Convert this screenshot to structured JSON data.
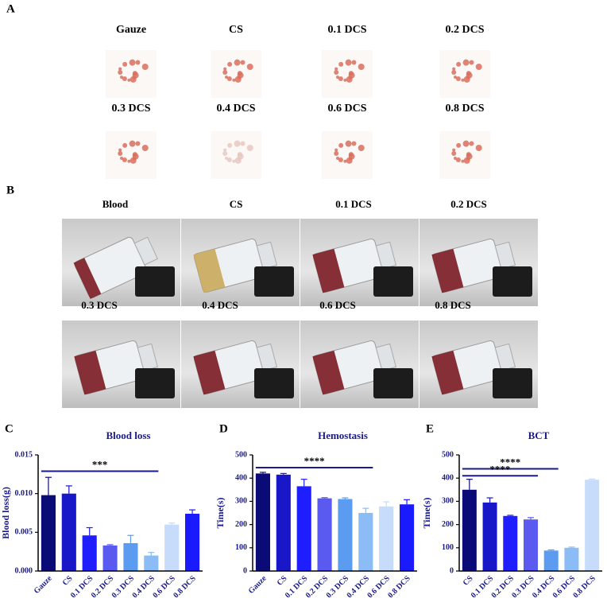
{
  "panel_a": {
    "label": "A",
    "captions": [
      "Gauze",
      "CS",
      "0.1 DCS",
      "0.2 DCS",
      "0.3 DCS",
      "0.4 DCS",
      "0.6 DCS",
      "0.8 DCS"
    ]
  },
  "panel_b": {
    "label": "B",
    "captions": [
      "Blood",
      "CS",
      "0.1 DCS",
      "0.2 DCS",
      "0.3 DCS",
      "0.4 DCS",
      "0.6 DCS",
      "0.8 DCS"
    ]
  },
  "chart_data": [
    {
      "type": "bar",
      "panel": "C",
      "title": "Blood loss",
      "ylabel": "Blood loss(g)",
      "categories": [
        "Gauze",
        "CS",
        "0.1 DCS",
        "0.2 DCS",
        "0.3 DCS",
        "0.4 DCS",
        "0.6 DCS",
        "0.8 DCS"
      ],
      "values": [
        0.0098,
        0.01,
        0.0046,
        0.0033,
        0.0036,
        0.002,
        0.006,
        0.0074
      ],
      "errors": [
        0.0023,
        0.001,
        0.001,
        0.0001,
        0.001,
        0.0004,
        0.0002,
        0.0005
      ],
      "colors": [
        "#0b0b78",
        "#1818c8",
        "#1e1eff",
        "#5a5af0",
        "#5c9cf0",
        "#8cbcf5",
        "#c6dcfa",
        "#1a1aff"
      ],
      "ylim": [
        0,
        0.015
      ],
      "yticks": [
        {
          "value": 0,
          "label": "0.000"
        },
        {
          "value": 0.005,
          "label": "0.005"
        },
        {
          "value": 0.01,
          "label": "0.010"
        },
        {
          "value": 0.015,
          "label": "0.015"
        }
      ],
      "significance": [
        {
          "from": "Gauze",
          "to": "0.4 DCS",
          "y": 0.0129,
          "label": "***"
        }
      ]
    },
    {
      "type": "bar",
      "panel": "D",
      "title": "Hemostasis",
      "ylabel": "Time(s)",
      "categories": [
        "Gauze",
        "CS",
        "0.1 DCS",
        "0.2 DCS",
        "0.3 DCS",
        "0.4 DCS",
        "0.6 DCS",
        "0.8 DCS"
      ],
      "values": [
        420,
        415,
        365,
        313,
        310,
        250,
        278,
        287
      ],
      "errors": [
        5,
        5,
        30,
        3,
        5,
        20,
        20,
        20
      ],
      "colors": [
        "#0b0b78",
        "#1818c8",
        "#1e1eff",
        "#5a5af0",
        "#5c9cf0",
        "#8cbcf5",
        "#c6dcfa",
        "#1a1aff"
      ],
      "ylim": [
        0,
        500
      ],
      "yticks": [
        0,
        100,
        200,
        300,
        400,
        500
      ],
      "significance": [
        {
          "from": "Gauze",
          "to": "0.4 DCS",
          "y": 445,
          "label": "****"
        }
      ]
    },
    {
      "type": "bar",
      "panel": "E",
      "title": "BCT",
      "ylabel": "Time(s)",
      "categories": [
        "CS",
        "0.1 DCS",
        "0.2 DCS",
        "0.3 DCS",
        "0.4 DCS",
        "0.6 DCS",
        "0.8 DCS"
      ],
      "values": [
        350,
        295,
        237,
        222,
        88,
        100,
        393
      ],
      "errors": [
        45,
        20,
        3,
        8,
        3,
        3,
        3
      ],
      "colors": [
        "#0b0b78",
        "#1818c8",
        "#1e1eff",
        "#5a5af0",
        "#5c9cf0",
        "#8cbcf5",
        "#c6dcfa"
      ],
      "ylim": [
        0,
        500
      ],
      "yticks": [
        0,
        100,
        200,
        300,
        400,
        500
      ],
      "significance": [
        {
          "from": "CS",
          "to": "0.4 DCS",
          "y": 440,
          "label": "****"
        },
        {
          "from": "CS",
          "to": "0.3 DCS",
          "y": 410,
          "label": "****"
        }
      ]
    }
  ]
}
